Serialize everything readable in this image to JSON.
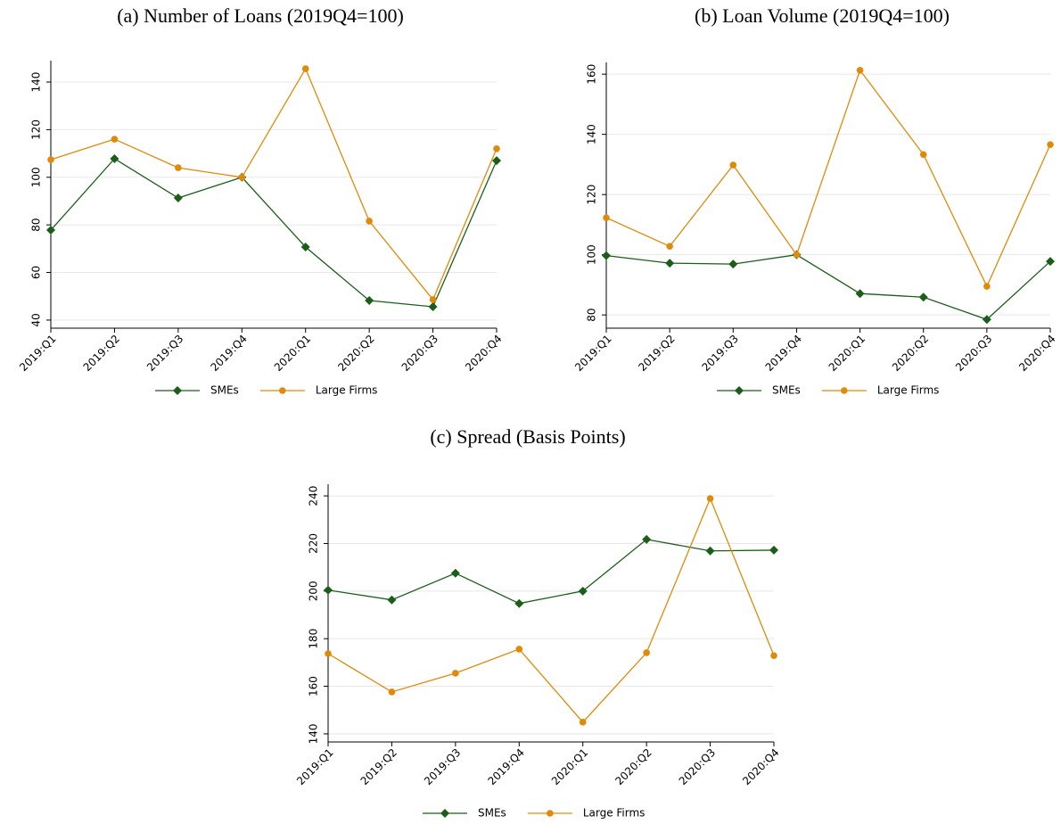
{
  "chart_data": [
    {
      "type": "line",
      "title": "(a) Number of Loans (2019Q4=100)",
      "categories": [
        "2019:Q1",
        "2019:Q2",
        "2019:Q3",
        "2019:Q4",
        "2020:Q1",
        "2020:Q2",
        "2020:Q3",
        "2020:Q4"
      ],
      "series": [
        {
          "name": "SMEs",
          "color": "#1a5e1a",
          "marker": "diamond",
          "values": [
            77.8,
            107.8,
            91.3,
            100,
            70.7,
            48.2,
            45.6,
            107
          ]
        },
        {
          "name": "Large Firms",
          "color": "#e08a0a",
          "marker": "circle",
          "values": [
            107.4,
            116,
            104,
            100,
            145.6,
            81.6,
            48.6,
            112
          ]
        }
      ],
      "ylim": [
        36.6,
        149
      ],
      "yticks": [
        40,
        60,
        80,
        100,
        120,
        140
      ],
      "grid": true
    },
    {
      "type": "line",
      "title": "(b) Loan Volume (2019Q4=100)",
      "categories": [
        "2019:Q1",
        "2019:Q2",
        "2019:Q3",
        "2019:Q4",
        "2020:Q1",
        "2020:Q2",
        "2020:Q3",
        "2020:Q4"
      ],
      "series": [
        {
          "name": "SMEs",
          "color": "#1a5e1a",
          "marker": "diamond",
          "values": [
            99.7,
            97.2,
            96.9,
            100,
            87.1,
            85.9,
            78.5,
            97.8
          ]
        },
        {
          "name": "Large Firms",
          "color": "#e08a0a",
          "marker": "circle",
          "values": [
            112.3,
            102.8,
            129.8,
            100,
            161.3,
            133.3,
            89.5,
            136.6
          ]
        }
      ],
      "ylim": [
        75.6,
        163.9
      ],
      "yticks": [
        80,
        100,
        120,
        140,
        160
      ],
      "grid": true
    },
    {
      "type": "line",
      "title": "(c) Spread (Basis Points)",
      "categories": [
        "2019:Q1",
        "2019:Q2",
        "2019:Q3",
        "2019:Q4",
        "2020:Q1",
        "2020:Q2",
        "2020:Q3",
        "2020:Q4"
      ],
      "series": [
        {
          "name": "SMEs",
          "color": "#1a5e1a",
          "marker": "diamond",
          "values": [
            200.4,
            196.3,
            207.5,
            194.8,
            200,
            221.7,
            216.9,
            217.2
          ]
        },
        {
          "name": "Large Firms",
          "color": "#e08a0a",
          "marker": "circle",
          "values": [
            173.7,
            157.6,
            165.5,
            175.6,
            144.9,
            174.1,
            238.9,
            172.9
          ]
        }
      ],
      "ylim": [
        136.6,
        244.9
      ],
      "yticks": [
        140,
        160,
        180,
        200,
        220,
        240
      ],
      "grid": true
    }
  ]
}
